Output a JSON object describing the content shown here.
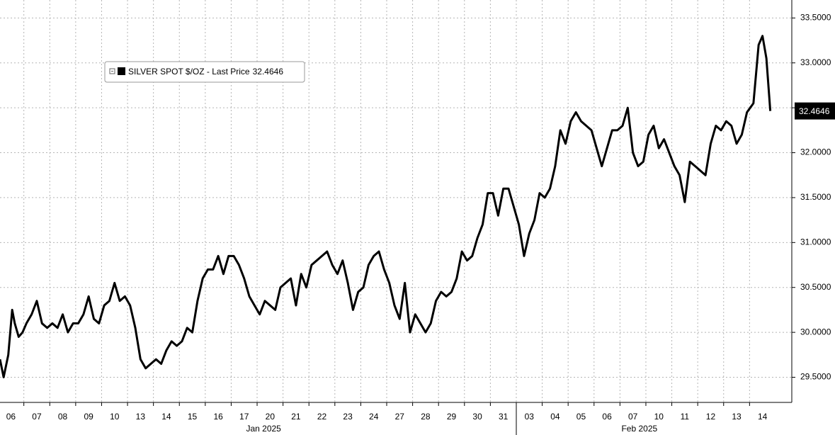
{
  "chart_data": {
    "type": "line",
    "legend_name": "SILVER SPOT $/OZ - Last Price",
    "last_price": 32.4646,
    "month_labels": [
      "Jan 2025",
      "Feb 2025"
    ],
    "xlim": [
      -0.42,
      30.13
    ],
    "ylim": [
      29.22,
      33.7
    ],
    "grid": true,
    "xticks": [
      {
        "value": 0,
        "label": "06"
      },
      {
        "value": 1,
        "label": "07"
      },
      {
        "value": 2,
        "label": "08"
      },
      {
        "value": 3,
        "label": "09"
      },
      {
        "value": 4,
        "label": "10"
      },
      {
        "value": 5,
        "label": "13"
      },
      {
        "value": 6,
        "label": "14"
      },
      {
        "value": 7,
        "label": "15"
      },
      {
        "value": 8,
        "label": "16"
      },
      {
        "value": 9,
        "label": "17"
      },
      {
        "value": 10,
        "label": "20"
      },
      {
        "value": 11,
        "label": "21"
      },
      {
        "value": 12,
        "label": "22"
      },
      {
        "value": 13,
        "label": "23"
      },
      {
        "value": 14,
        "label": "24"
      },
      {
        "value": 15,
        "label": "27"
      },
      {
        "value": 16,
        "label": "28"
      },
      {
        "value": 17,
        "label": "29"
      },
      {
        "value": 18,
        "label": "30"
      },
      {
        "value": 19,
        "label": "31"
      },
      {
        "value": 20,
        "label": "03"
      },
      {
        "value": 21,
        "label": "04"
      },
      {
        "value": 22,
        "label": "05"
      },
      {
        "value": 23,
        "label": "06"
      },
      {
        "value": 24,
        "label": "07"
      },
      {
        "value": 25,
        "label": "10"
      },
      {
        "value": 26,
        "label": "11"
      },
      {
        "value": 27,
        "label": "12"
      },
      {
        "value": 28,
        "label": "13"
      },
      {
        "value": 29,
        "label": "14"
      }
    ],
    "yticks": [
      {
        "value": 29.5,
        "label": "29.5000"
      },
      {
        "value": 30,
        "label": "30.0000"
      },
      {
        "value": 30.5,
        "label": "30.5000"
      },
      {
        "value": 31,
        "label": "31.0000"
      },
      {
        "value": 31.5,
        "label": "31.5000"
      },
      {
        "value": 32,
        "label": "32.0000"
      },
      {
        "value": 32.5,
        "label": "32.5000"
      },
      {
        "value": 33,
        "label": "33.0000"
      },
      {
        "value": 33.5,
        "label": "33.5000"
      }
    ],
    "x": [
      -0.42,
      -0.28,
      -0.1,
      0.05,
      0.15,
      0.3,
      0.45,
      0.6,
      0.8,
      1,
      1.2,
      1.4,
      1.6,
      1.8,
      2,
      2.2,
      2.4,
      2.6,
      2.8,
      3,
      3.2,
      3.4,
      3.6,
      3.8,
      4,
      4.2,
      4.4,
      4.6,
      4.8,
      5,
      5.2,
      5.4,
      5.6,
      5.8,
      6,
      6.2,
      6.4,
      6.6,
      6.8,
      7,
      7.2,
      7.4,
      7.6,
      7.8,
      8,
      8.2,
      8.4,
      8.6,
      8.8,
      9,
      9.2,
      9.4,
      9.6,
      9.8,
      10,
      10.2,
      10.4,
      10.6,
      10.8,
      11,
      11.2,
      11.4,
      11.6,
      11.8,
      12,
      12.2,
      12.4,
      12.6,
      12.8,
      13,
      13.2,
      13.4,
      13.6,
      13.8,
      14,
      14.2,
      14.4,
      14.6,
      14.8,
      15,
      15.2,
      15.4,
      15.6,
      15.8,
      16,
      16.2,
      16.4,
      16.6,
      16.8,
      17,
      17.2,
      17.4,
      17.6,
      17.8,
      18,
      18.2,
      18.4,
      18.6,
      18.8,
      19,
      19.2,
      19.4,
      19.6,
      19.8,
      20,
      20.2,
      20.4,
      20.6,
      20.8,
      21,
      21.2,
      21.4,
      21.6,
      21.8,
      22,
      22.2,
      22.4,
      22.6,
      22.8,
      23,
      23.2,
      23.4,
      23.6,
      23.8,
      24,
      24.2,
      24.4,
      24.6,
      24.8,
      25,
      25.2,
      25.4,
      25.6,
      25.8,
      26,
      26.2,
      26.4,
      26.6,
      26.8,
      27,
      27.2,
      27.4,
      27.6,
      27.8,
      28,
      28.2,
      28.4,
      28.65,
      28.85,
      29,
      29.15,
      29.3
    ],
    "series": [
      {
        "name": "SILVER SPOT $/OZ",
        "color": "#000000",
        "values": [
          29.7,
          29.5,
          29.75,
          30.25,
          30.1,
          29.95,
          30.0,
          30.1,
          30.2,
          30.35,
          30.1,
          30.05,
          30.1,
          30.05,
          30.2,
          30.0,
          30.1,
          30.1,
          30.2,
          30.4,
          30.15,
          30.1,
          30.3,
          30.35,
          30.55,
          30.35,
          30.4,
          30.3,
          30.05,
          29.7,
          29.6,
          29.65,
          29.7,
          29.65,
          29.8,
          29.9,
          29.85,
          29.9,
          30.05,
          30.0,
          30.35,
          30.6,
          30.7,
          30.7,
          30.85,
          30.65,
          30.85,
          30.85,
          30.75,
          30.6,
          30.4,
          30.3,
          30.2,
          30.35,
          30.3,
          30.25,
          30.5,
          30.55,
          30.6,
          30.3,
          30.65,
          30.5,
          30.75,
          30.8,
          30.85,
          30.9,
          30.75,
          30.65,
          30.8,
          30.55,
          30.25,
          30.45,
          30.5,
          30.75,
          30.85,
          30.9,
          30.7,
          30.55,
          30.3,
          30.15,
          30.55,
          30.0,
          30.2,
          30.1,
          30.0,
          30.1,
          30.35,
          30.45,
          30.4,
          30.45,
          30.6,
          30.9,
          30.8,
          30.85,
          31.05,
          31.2,
          31.55,
          31.55,
          31.3,
          31.6,
          31.6,
          31.4,
          31.2,
          30.85,
          31.1,
          31.25,
          31.55,
          31.5,
          31.6,
          31.85,
          32.25,
          32.1,
          32.35,
          32.45,
          32.35,
          32.3,
          32.25,
          32.05,
          31.85,
          32.05,
          32.25,
          32.25,
          32.3,
          32.5,
          32.0,
          31.85,
          31.9,
          32.2,
          32.3,
          32.05,
          32.15,
          32.0,
          31.85,
          31.75,
          31.45,
          31.9,
          31.85,
          31.8,
          31.75,
          32.1,
          32.3,
          32.25,
          32.35,
          32.3,
          32.1,
          32.2,
          32.45,
          32.55,
          33.2,
          33.3,
          33.05,
          32.4646
        ]
      }
    ]
  }
}
